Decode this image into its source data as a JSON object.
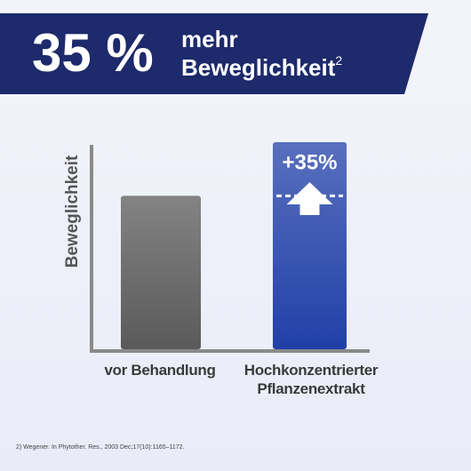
{
  "header": {
    "big": "35 %",
    "line1": "mehr",
    "line2": "Beweglichkeit",
    "sup": "2"
  },
  "chart_data": {
    "type": "bar",
    "ylabel": "Beweglichkeit",
    "categories": [
      "vor Behandlung",
      "Hochkonzentrierter Pflanzenextrakt"
    ],
    "values": [
      100,
      135
    ],
    "colors": [
      "#5a5a5a",
      "#2140a8"
    ],
    "annotation": "+35%"
  },
  "footnote": "2) Wegener. In Phytother. Res., 2003 Dec;17(10):1165–1172."
}
